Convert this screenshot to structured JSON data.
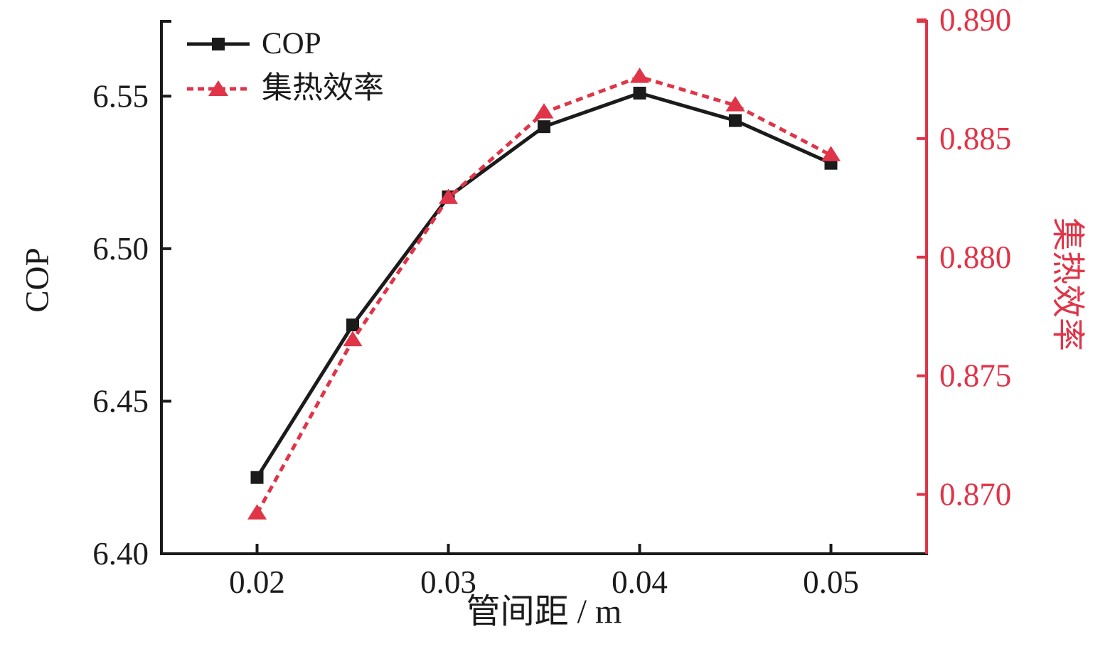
{
  "chart_data": {
    "type": "line",
    "title": "",
    "xlabel": "管间距 / m",
    "ylabel_left": "COP",
    "ylabel_right": "集热效率",
    "grid": false,
    "legend": {
      "position": "top-left-inside"
    },
    "x": [
      0.02,
      0.025,
      0.03,
      0.035,
      0.04,
      0.045,
      0.05
    ],
    "series": [
      {
        "name": "COP",
        "axis": "left",
        "color": "#1b1b1b",
        "marker": "square",
        "line_style": "solid",
        "values": [
          6.425,
          6.475,
          6.517,
          6.54,
          6.551,
          6.542,
          6.528
        ]
      },
      {
        "name": "集热效率",
        "axis": "right",
        "color": "#e03448",
        "marker": "triangle",
        "line_style": "dashed",
        "values": [
          0.8692,
          0.8765,
          0.8825,
          0.8861,
          0.8876,
          0.8864,
          0.8843
        ]
      }
    ],
    "xlim": [
      0.015,
      0.055
    ],
    "x_ticks": [
      0.02,
      0.03,
      0.04,
      0.05
    ],
    "x_tick_labels": [
      "0.02",
      "0.03",
      "0.04",
      "0.05"
    ],
    "left_axis": {
      "color": "#1b1b1b",
      "lim": [
        6.4,
        6.575
      ],
      "ticks": [
        6.4,
        6.45,
        6.5,
        6.55
      ],
      "tick_labels": [
        "6.40",
        "6.45",
        "6.50",
        "6.55"
      ]
    },
    "right_axis": {
      "color": "#e03448",
      "lim": [
        0.8675,
        0.89
      ],
      "ticks": [
        0.87,
        0.875,
        0.88,
        0.885,
        0.89
      ],
      "tick_labels": [
        "0.870",
        "0.875",
        "0.880",
        "0.885",
        "0.890"
      ]
    }
  }
}
